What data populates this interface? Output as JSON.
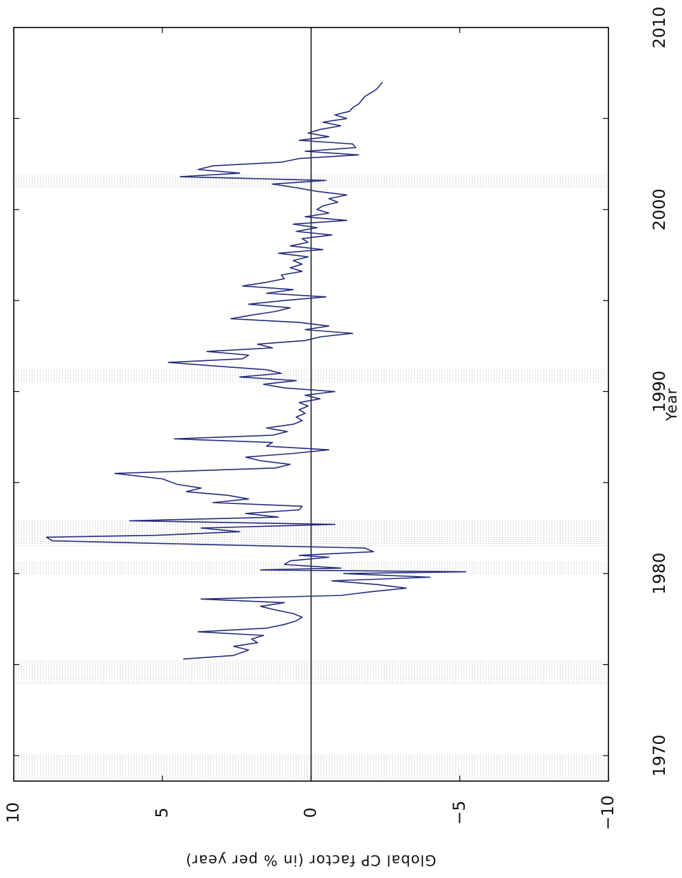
{
  "chart_data": {
    "type": "line",
    "orientation": "rotated-90-cw",
    "title": "",
    "xlabel": "Year",
    "ylabel": "Global CP factor (in % per year)",
    "xlim": [
      1968.6,
      2010
    ],
    "ylim": [
      -10,
      10
    ],
    "x_ticks": [
      1970,
      1980,
      1990,
      2000,
      2010
    ],
    "x_tick_labels": [
      "1970",
      "1980",
      "1990",
      "2000",
      "2010"
    ],
    "y_ticks": [
      -10,
      -5,
      0,
      5,
      10
    ],
    "y_tick_labels": [
      "−10",
      "−5",
      "0",
      "5",
      "10"
    ],
    "grid": false,
    "legend": "none",
    "zero_line": true,
    "line_color": "#1f2a78",
    "shaded_color": "#c8c8c8",
    "shaded_periods": [
      [
        1968.7,
        1970.0
      ],
      [
        1973.9,
        1975.2
      ],
      [
        1980.0,
        1980.6
      ],
      [
        1981.5,
        1982.9
      ],
      [
        1990.5,
        1991.2
      ],
      [
        2001.2,
        2001.9
      ]
    ],
    "series": [
      {
        "name": "",
        "x": [
          1975.3,
          1975.5,
          1975.8,
          1976.0,
          1976.2,
          1976.4,
          1976.6,
          1976.8,
          1977.0,
          1977.2,
          1977.4,
          1977.6,
          1977.8,
          1978.0,
          1978.2,
          1978.4,
          1978.6,
          1978.8,
          1979.0,
          1979.2,
          1979.4,
          1979.6,
          1979.8,
          1980.0,
          1980.1,
          1980.2,
          1980.3,
          1980.5,
          1980.7,
          1980.9,
          1981.0,
          1981.2,
          1981.4,
          1981.6,
          1981.8,
          1982.0,
          1982.1,
          1982.3,
          1982.5,
          1982.7,
          1982.9,
          1983.1,
          1983.3,
          1983.5,
          1983.7,
          1983.9,
          1984.1,
          1984.3,
          1984.5,
          1984.7,
          1984.9,
          1985.2,
          1985.5,
          1985.8,
          1986.0,
          1986.2,
          1986.4,
          1986.6,
          1986.8,
          1987.0,
          1987.2,
          1987.4,
          1987.6,
          1987.8,
          1988.0,
          1988.2,
          1988.4,
          1988.6,
          1988.8,
          1989.0,
          1989.2,
          1989.4,
          1989.6,
          1989.8,
          1990.0,
          1990.2,
          1990.4,
          1990.6,
          1990.8,
          1991.0,
          1991.2,
          1991.4,
          1991.6,
          1991.8,
          1992.0,
          1992.2,
          1992.4,
          1992.6,
          1992.8,
          1993.0,
          1993.2,
          1993.4,
          1993.6,
          1993.8,
          1994.0,
          1994.2,
          1994.4,
          1994.6,
          1994.8,
          1995.0,
          1995.2,
          1995.4,
          1995.6,
          1995.8,
          1996.0,
          1996.2,
          1996.4,
          1996.6,
          1996.8,
          1997.0,
          1997.2,
          1997.4,
          1997.6,
          1997.8,
          1998.0,
          1998.2,
          1998.4,
          1998.6,
          1998.8,
          1999.0,
          1999.2,
          1999.4,
          1999.6,
          1999.8,
          2000.0,
          2000.2,
          2000.4,
          2000.6,
          2000.8,
          2001.0,
          2001.2,
          2001.4,
          2001.6,
          2001.8,
          2002.0,
          2002.2,
          2002.4,
          2002.6,
          2002.8,
          2003.0,
          2003.2,
          2003.4,
          2003.6,
          2003.8,
          2004.0,
          2004.2,
          2004.4,
          2004.6,
          2004.8,
          2005.0,
          2005.2,
          2005.4,
          2005.6,
          2005.8,
          2006.0,
          2006.2,
          2006.4,
          2006.6,
          2006.8,
          2007.0
        ],
        "y": [
          4.3,
          2.6,
          2.1,
          2.6,
          1.8,
          2.0,
          1.6,
          3.8,
          1.5,
          0.9,
          0.5,
          0.3,
          0.6,
          1.2,
          1.7,
          0.9,
          3.7,
          -1.0,
          -2.0,
          -3.2,
          -2.2,
          -0.7,
          -4.0,
          -1.1,
          -5.2,
          1.7,
          -1.0,
          0.9,
          0.7,
          -0.6,
          0.4,
          -2.1,
          -1.8,
          3.7,
          8.7,
          8.9,
          5.2,
          2.4,
          3.7,
          -0.8,
          6.1,
          1.1,
          2.2,
          0.4,
          0.3,
          3.3,
          2.1,
          2.8,
          4.2,
          3.7,
          4.5,
          5.0,
          6.6,
          1.2,
          0.7,
          1.7,
          2.2,
          0.6,
          -0.6,
          1.5,
          1.3,
          4.6,
          1.3,
          0.8,
          1.5,
          0.6,
          0.3,
          0.5,
          0.2,
          0.4,
          0.1,
          0.4,
          -0.3,
          0.2,
          -0.8,
          0.9,
          1.6,
          0.5,
          2.4,
          1.0,
          1.5,
          3.2,
          4.8,
          2.3,
          2.1,
          3.5,
          1.3,
          1.8,
          0.2,
          -0.3,
          -1.4,
          0.2,
          -0.6,
          0.4,
          2.7,
          2.0,
          1.2,
          0.7,
          2.1,
          0.9,
          -0.5,
          1.5,
          0.6,
          2.3,
          1.5,
          0.9,
          1.0,
          0.3,
          0.7,
          0.3,
          0.6,
          0.1,
          1.1,
          -0.4,
          0.7,
          0.1,
          0.3,
          -0.7,
          0.5,
          -0.2,
          0.6,
          -1.2,
          0.2,
          -0.6,
          -0.2,
          -0.4,
          -0.9,
          -0.6,
          -1.2,
          -0.2,
          0.5,
          1.3,
          -0.5,
          4.4,
          2.4,
          3.8,
          3.3,
          1.0,
          0.4,
          -1.6,
          0.2,
          -1.5,
          -1.4,
          0.4,
          -0.6,
          0.1,
          -0.3,
          -1.0,
          -0.4,
          -1.2,
          -0.8,
          -1.3,
          -1.4,
          -1.6,
          -1.7,
          -1.8,
          -2.0,
          -2.2,
          -2.3,
          -2.4
        ]
      }
    ]
  }
}
